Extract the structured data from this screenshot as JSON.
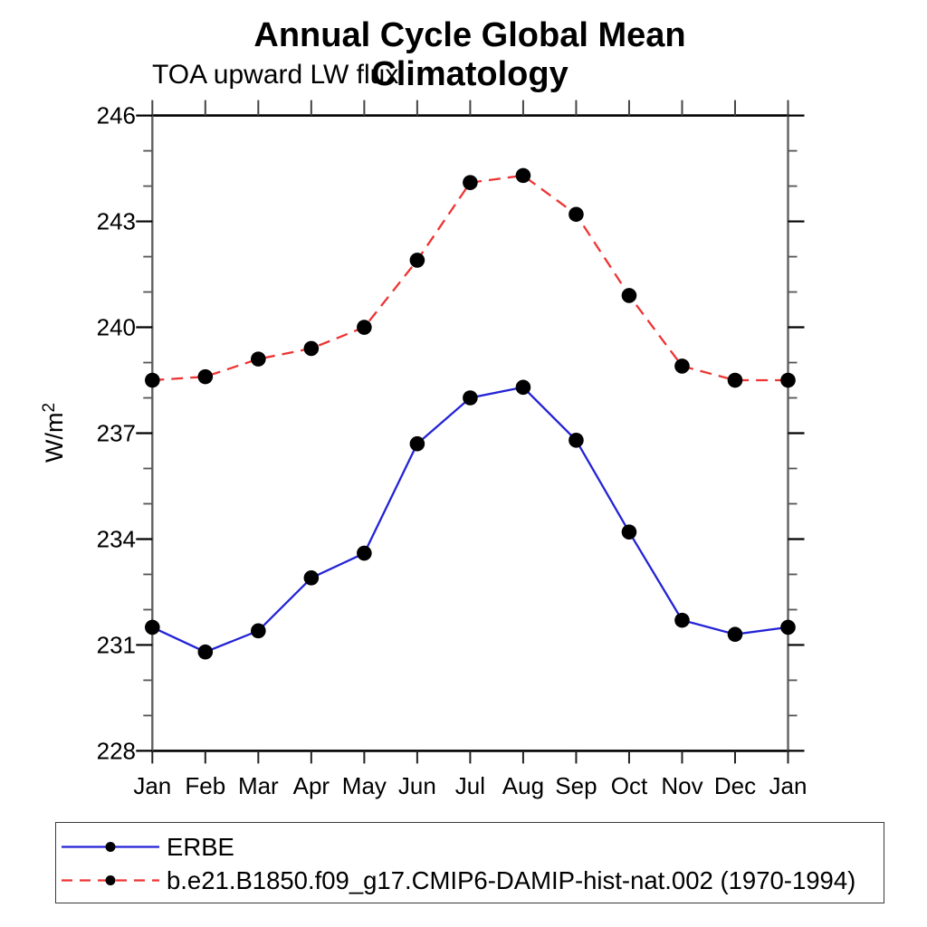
{
  "chart_data": {
    "type": "line",
    "title": "Annual Cycle Global Mean Climatology",
    "subtitle": "TOA upward LW flux",
    "ylabel": "W/m^2",
    "ylabel_base": "W/m",
    "ylabel_sup": "2",
    "categories": [
      "Jan",
      "Feb",
      "Mar",
      "Apr",
      "May",
      "Jun",
      "Jul",
      "Aug",
      "Sep",
      "Oct",
      "Nov",
      "Dec",
      "Jan"
    ],
    "ylim": [
      228,
      246
    ],
    "y_ticks_major": [
      228,
      231,
      234,
      237,
      240,
      243,
      246
    ],
    "y_minor_step": 1,
    "grid": false,
    "legend_position": "bottom",
    "axis_color": "#000000",
    "side_axis_color": "#606060",
    "marker": "filled-circle",
    "marker_color": "#000000",
    "series": [
      {
        "name": "ERBE",
        "color": "#2323d6",
        "line_style": "solid",
        "values": [
          231.5,
          230.8,
          231.4,
          232.9,
          233.6,
          236.7,
          238.0,
          238.3,
          236.8,
          234.2,
          231.7,
          231.3,
          231.5
        ]
      },
      {
        "name": "b.e21.B1850.f09_g17.CMIP6-DAMIP-hist-nat.002 (1970-1994)",
        "color": "#ee3333",
        "line_style": "dashed",
        "values": [
          238.5,
          238.6,
          239.1,
          239.4,
          240.0,
          241.9,
          244.1,
          244.3,
          243.2,
          240.9,
          238.9,
          238.5,
          238.5
        ]
      }
    ]
  }
}
